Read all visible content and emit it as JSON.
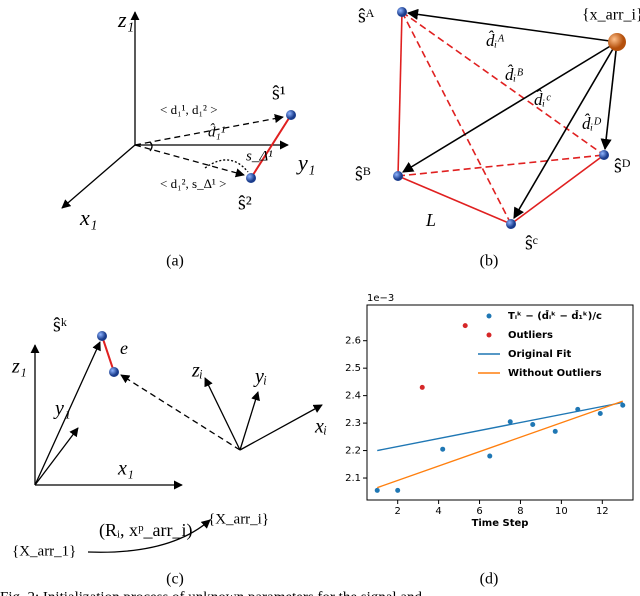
{
  "panel_a": {
    "caption": "(a)",
    "labels": [
      "z₁",
      "y₁",
      "x₁",
      "ŝ¹",
      "ŝ²",
      "< d₁¹, d₁² >",
      "< d₁², s_Δ¹ >",
      "d̂₁¹",
      "s_Δ¹"
    ]
  },
  "panel_b": {
    "caption": "(b)",
    "labels": [
      "ŝᴬ",
      "ŝᴮ",
      "ŝᶜ",
      "ŝᴰ",
      "{x_arr_i}",
      "d̂ᵢᴬ",
      "d̂ᵢᴮ",
      "d̂ᵢᶜ",
      "d̂ᵢᴰ",
      "L"
    ]
  },
  "panel_c": {
    "caption": "(c)",
    "labels": [
      "ŝᵏ",
      "e",
      "z₁",
      "y₁",
      "x₁",
      "zᵢ",
      "yᵢ",
      "xᵢ",
      "{X_arr_1}",
      "(Rᵢ, xᵖ_arr_i)",
      "{X_arr_i}"
    ]
  },
  "chart_data": {
    "type": "scatter",
    "caption": "(d)",
    "xlabel": "Time Step",
    "y_offset_label": "1e−3",
    "xlim": [
      0.5,
      13.5
    ],
    "ylim": [
      2.02,
      2.73
    ],
    "xticks": [
      2,
      4,
      6,
      8,
      10,
      12
    ],
    "yticks": [
      2.1,
      2.2,
      2.3,
      2.4,
      2.5,
      2.6
    ],
    "legend": "upper right",
    "series": [
      {
        "name": "Tᵢᵏ − (d̂ᵢᵏ − d̂₁ᵏ)/c",
        "style": "marker",
        "color": "#1f77b4",
        "x": [
          1,
          2,
          4.2,
          6.5,
          7.5,
          8.6,
          9.7,
          10.8,
          11.9,
          13
        ],
        "values": [
          2.055,
          2.055,
          2.205,
          2.18,
          2.305,
          2.295,
          2.27,
          2.35,
          2.335,
          2.365
        ]
      },
      {
        "name": "Outliers",
        "style": "marker",
        "color": "#d62728",
        "x": [
          3.2,
          5.3
        ],
        "values": [
          2.43,
          2.655
        ]
      },
      {
        "name": "Original Fit",
        "style": "line",
        "color": "#1f77b4",
        "x": [
          1,
          13
        ],
        "values": [
          2.2,
          2.375
        ]
      },
      {
        "name": "Without Outliers",
        "style": "line",
        "color": "#ff7f0e",
        "x": [
          1,
          13
        ],
        "values": [
          2.065,
          2.38
        ]
      }
    ]
  },
  "figure_caption": "Fig. 2: Initialization process of unknown parameters for the signal and"
}
